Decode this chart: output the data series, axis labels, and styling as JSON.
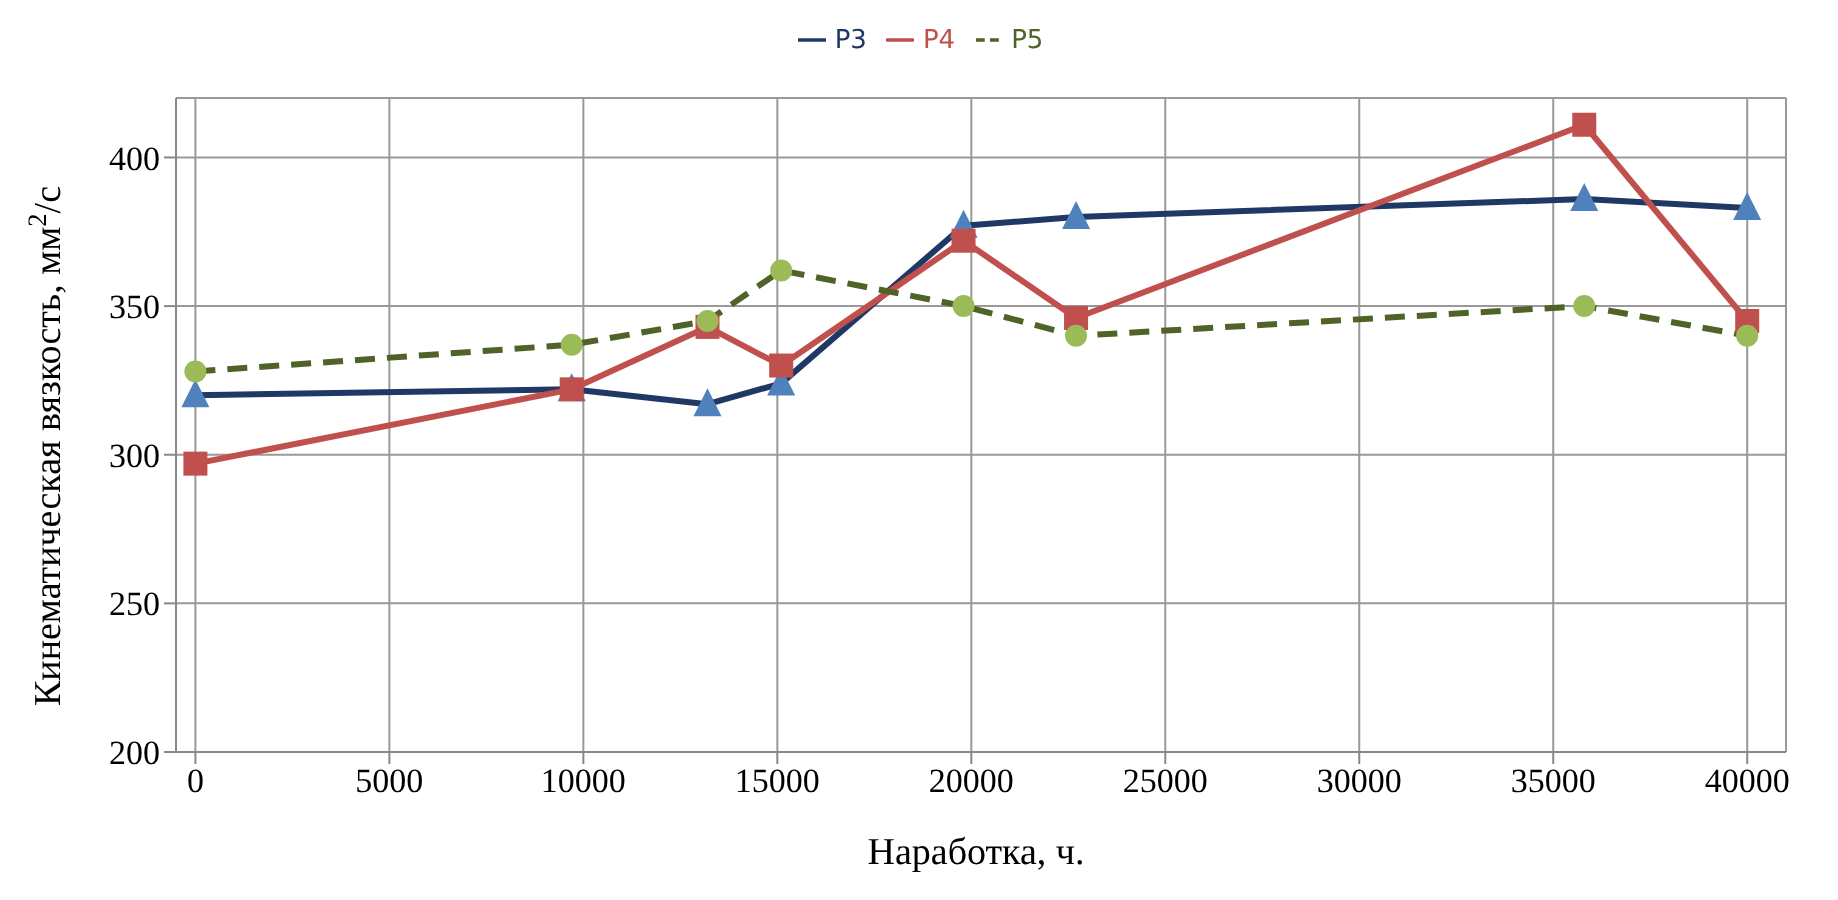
{
  "chart_data": {
    "type": "line",
    "xlabel": "Наработка, ч.",
    "ylabel": "Кинематическая вязкость, мм$^{2}$/с",
    "x": [
      0,
      9700,
      13200,
      15100,
      19800,
      22700,
      35800,
      40000
    ],
    "series": [
      {
        "name": "Р3",
        "color": "#1f3864",
        "marker": "triangle",
        "line_style": "solid",
        "values": [
          320,
          322,
          317,
          324,
          377,
          380,
          386,
          383
        ]
      },
      {
        "name": "Р4",
        "color": "#c0504d",
        "marker": "square",
        "line_style": "solid",
        "values": [
          297,
          322,
          343,
          330,
          372,
          346,
          411,
          345
        ]
      },
      {
        "name": "Р5",
        "color": "#4f6228",
        "marker": "circle",
        "line_style": "dashed",
        "values": [
          328,
          337,
          345,
          362,
          350,
          340,
          350,
          340
        ]
      }
    ],
    "xlim": [
      -500,
      41000
    ],
    "xticks": [
      0,
      5000,
      10000,
      15000,
      20000,
      25000,
      30000,
      35000,
      40000
    ],
    "ylim": [
      200,
      420
    ],
    "yticks": [
      200,
      250,
      300,
      350,
      400
    ],
    "grid": true,
    "legend": "top"
  }
}
